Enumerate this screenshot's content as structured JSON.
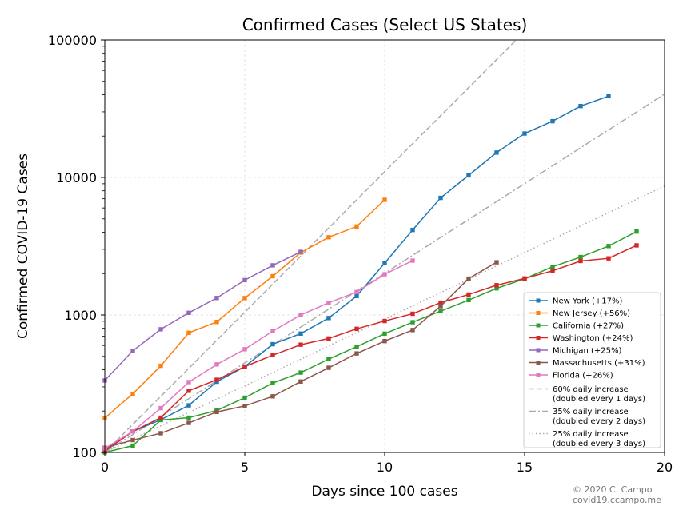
{
  "chart_data": {
    "type": "line",
    "title": "Confirmed Cases (Select US States)",
    "xlabel": "Days since 100 cases",
    "ylabel": "Confirmed COVID-19 Cases",
    "x_scale": "linear",
    "y_scale": "log",
    "xlim": [
      0,
      20
    ],
    "ylim": [
      100,
      100000
    ],
    "xticks": [
      0,
      5,
      10,
      15,
      20
    ],
    "yticks": [
      100,
      1000,
      10000,
      100000
    ],
    "grid": true,
    "legend_position": "lower-right",
    "series": [
      {
        "name": "New York (+17%)",
        "color": "#1f77b4",
        "marker": "square",
        "x": [
          0,
          1,
          2,
          3,
          4,
          5,
          6,
          7,
          8,
          9,
          10,
          11,
          12,
          13,
          14,
          15,
          16,
          17,
          18
        ],
        "y": [
          105,
          142,
          173,
          220,
          327,
          421,
          613,
          732,
          950,
          1374,
          2382,
          4152,
          7102,
          10356,
          15168,
          20875,
          25665,
          33066,
          38987
        ]
      },
      {
        "name": "New Jersey (+56%)",
        "color": "#ff7f0e",
        "marker": "square",
        "x": [
          0,
          1,
          2,
          3,
          4,
          5,
          6,
          7,
          8,
          9,
          10
        ],
        "y": [
          178,
          267,
          427,
          742,
          890,
          1327,
          1914,
          2844,
          3675,
          4402,
          6876
        ]
      },
      {
        "name": "California (+27%)",
        "color": "#2ca02c",
        "marker": "square",
        "x": [
          0,
          1,
          2,
          3,
          4,
          5,
          6,
          7,
          8,
          9,
          10,
          11,
          12,
          13,
          14,
          15,
          16,
          17,
          18,
          19
        ],
        "y": [
          100,
          112,
          172,
          179,
          202,
          250,
          320,
          381,
          478,
          588,
          731,
          886,
          1066,
          1283,
          1562,
          1833,
          2241,
          2638,
          3170,
          4040
        ]
      },
      {
        "name": "Washington (+24%)",
        "color": "#d62728",
        "marker": "square",
        "x": [
          0,
          1,
          2,
          3,
          4,
          5,
          6,
          7,
          8,
          9,
          10,
          11,
          12,
          13,
          14,
          15,
          16,
          17,
          18,
          19
        ],
        "y": [
          102,
          142,
          179,
          281,
          338,
          421,
          510,
          608,
          675,
          793,
          904,
          1021,
          1229,
          1408,
          1646,
          1844,
          2095,
          2469,
          2580,
          3207
        ]
      },
      {
        "name": "Michigan (+25%)",
        "color": "#9467bd",
        "marker": "square",
        "x": [
          0,
          1,
          2,
          3,
          4,
          5,
          6,
          7
        ],
        "y": [
          334,
          549,
          787,
          1037,
          1329,
          1793,
          2296,
          2878
        ]
      },
      {
        "name": "Massachusetts (+31%)",
        "color": "#8c564b",
        "marker": "square",
        "x": [
          0,
          1,
          2,
          3,
          4,
          5,
          6,
          7,
          8,
          9,
          10,
          11,
          12,
          13,
          14
        ],
        "y": [
          108,
          123,
          138,
          164,
          197,
          218,
          256,
          328,
          413,
          525,
          646,
          777,
          1159,
          1838,
          2417
        ]
      },
      {
        "name": "Florida (+26%)",
        "color": "#e377c2",
        "marker": "square",
        "x": [
          0,
          1,
          2,
          3,
          4,
          5,
          6,
          7,
          8,
          9,
          10,
          11
        ],
        "y": [
          107,
          142,
          210,
          325,
          437,
          563,
          764,
          1001,
          1227,
          1467,
          1977,
          2484
        ]
      }
    ],
    "reference_lines": [
      {
        "name": "60% daily increase\n(doubled every 1 days)",
        "rate": 0.6,
        "start": 100,
        "style": "dashed",
        "color": "#aaaaaa"
      },
      {
        "name": "35% daily increase\n(doubled every 2 days)",
        "rate": 0.35,
        "start": 100,
        "style": "dashdot",
        "color": "#aaaaaa"
      },
      {
        "name": "25% daily increase\n(doubled every 3 days)",
        "rate": 0.25,
        "start": 100,
        "style": "dotted",
        "color": "#aaaaaa"
      }
    ]
  },
  "credit": {
    "line1": "© 2020 C. Campo",
    "line2": "covid19.ccampo.me"
  }
}
